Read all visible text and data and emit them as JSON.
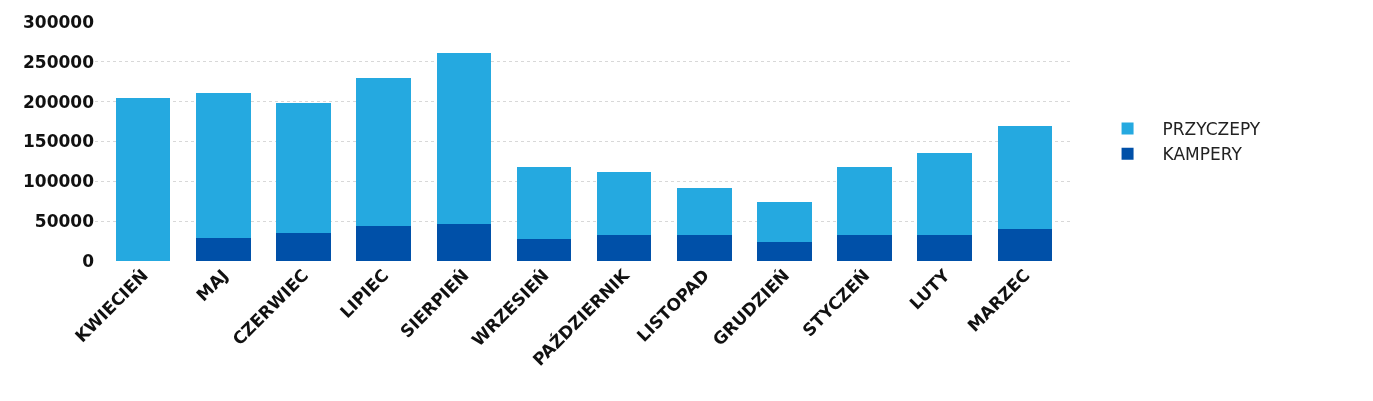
{
  "chart_data": {
    "type": "bar",
    "stacked": true,
    "categories": [
      "KWIECIEŃ",
      "MAJ",
      "CZERWIEC",
      "LIPIEC",
      "SIERPIEŃ",
      "WRZESIEŃ",
      "PAŹDZIERNIK",
      "LISTOPAD",
      "GRUDZIEŃ",
      "STYCZEŃ",
      "LUTY",
      "MARZEC"
    ],
    "series": [
      {
        "name": "KAMPERY",
        "color": "#0050a8",
        "values": [
          0,
          29000,
          35000,
          44000,
          46000,
          28000,
          33000,
          33000,
          24000,
          33000,
          33000,
          40000
        ]
      },
      {
        "name": "PRZYCZEPY",
        "color": "#25a9e0",
        "values": [
          205000,
          182000,
          163000,
          186000,
          215000,
          90000,
          79000,
          59000,
          50000,
          85000,
          102000,
          129000
        ]
      }
    ],
    "ylim": [
      0,
      300000
    ],
    "yticks": [
      0,
      50000,
      100000,
      150000,
      200000,
      250000,
      300000
    ],
    "grid": "y",
    "legend": "right"
  }
}
